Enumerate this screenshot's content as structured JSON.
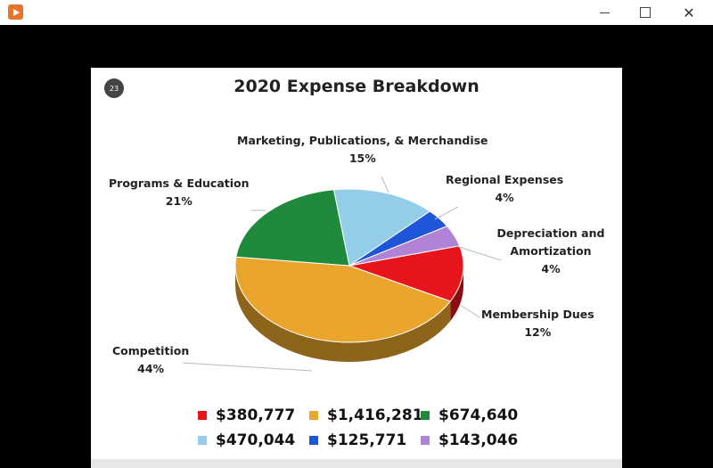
{
  "window": {
    "icon": "play-icon",
    "minimize": "–",
    "maximize": "□",
    "close": "✕"
  },
  "slide": {
    "number": "23",
    "title": "2020 Expense Breakdown"
  },
  "chart_data": {
    "type": "pie",
    "title": "2020 Expense Breakdown",
    "slices": [
      {
        "label": "Membership Dues",
        "percent": "12%",
        "value": 380777,
        "value_label": "$380,777",
        "color": "#e8141c"
      },
      {
        "label": "Competition",
        "percent": "44%",
        "value": 1416281,
        "value_label": "$1,416,281",
        "color": "#eaa62c"
      },
      {
        "label": "Programs & Education",
        "percent": "21%",
        "value": 674640,
        "value_label": "$674,640",
        "color": "#1f8a3c"
      },
      {
        "label": "Marketing, Publications, & Merchandise",
        "percent": "15%",
        "value": 470044,
        "value_label": "$470,044",
        "color": "#93cde8"
      },
      {
        "label": "Regional Expenses",
        "percent": "4%",
        "value": 125771,
        "value_label": "$125,771",
        "color": "#1f55d8"
      },
      {
        "label": "Depreciation and Amortization",
        "percent": "4%",
        "value": 143046,
        "value_label": "$143,046",
        "color": "#b083d6"
      }
    ],
    "legend": "bottom"
  }
}
